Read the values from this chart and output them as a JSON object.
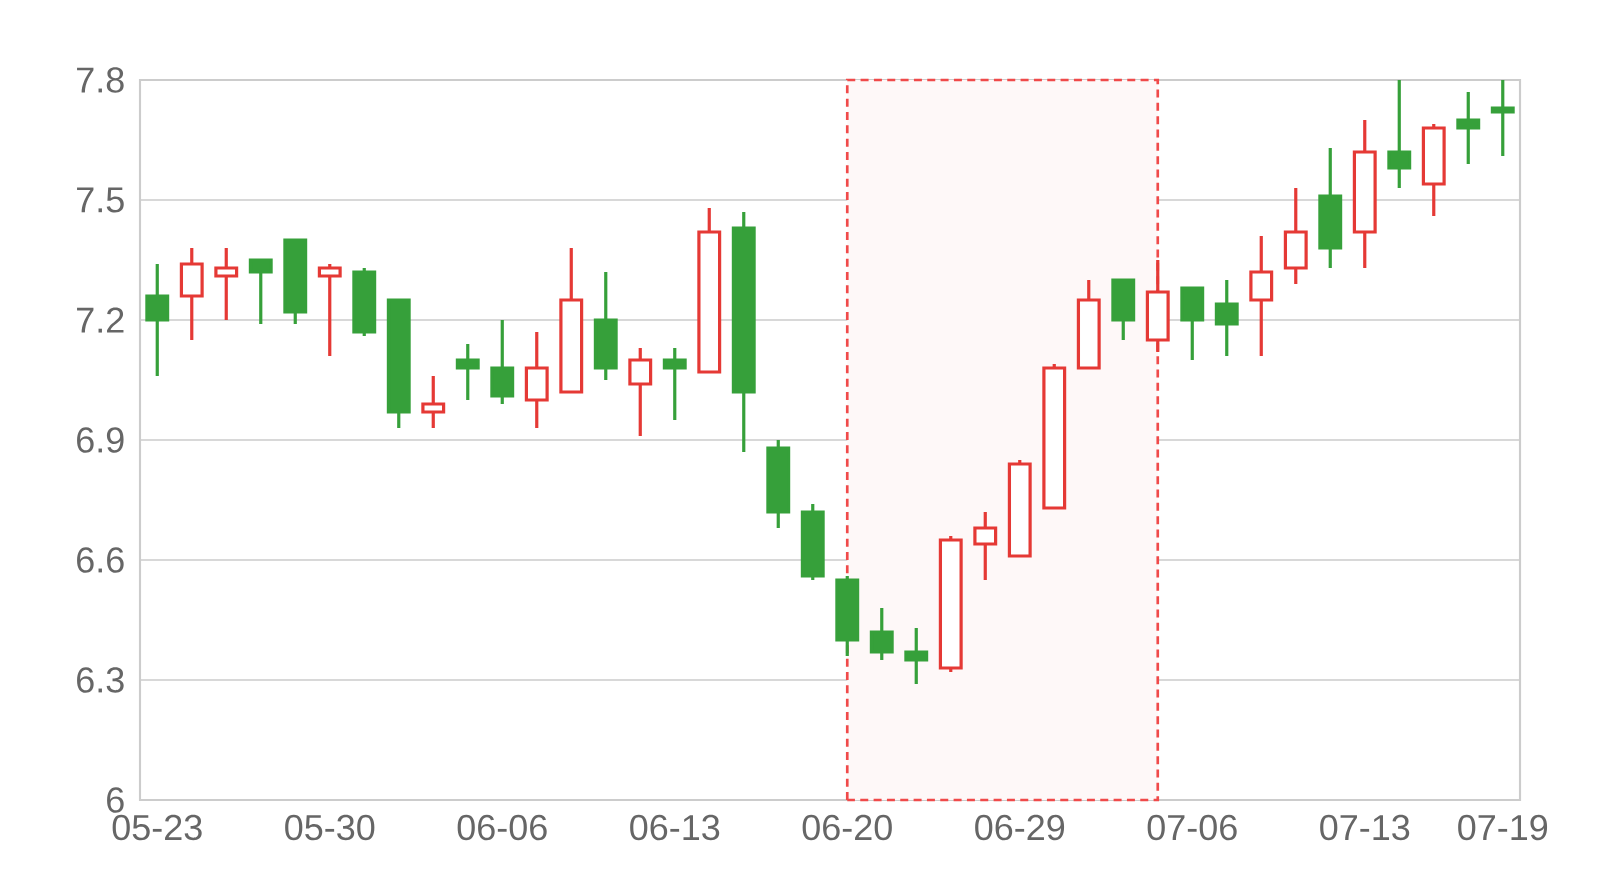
{
  "chart_data": {
    "type": "candlestick",
    "categories": [
      "05-23",
      null,
      null,
      null,
      null,
      "05-30",
      null,
      null,
      null,
      null,
      "06-06",
      null,
      null,
      null,
      null,
      "06-13",
      null,
      null,
      null,
      null,
      "06-20",
      null,
      null,
      null,
      null,
      "06-29",
      null,
      null,
      null,
      null,
      "07-06",
      null,
      null,
      null,
      null,
      "07-13",
      null,
      null,
      null,
      "07-19"
    ],
    "ohlc": [
      [
        7.26,
        7.34,
        7.06,
        7.2
      ],
      [
        7.26,
        7.38,
        7.15,
        7.34
      ],
      [
        7.31,
        7.38,
        7.2,
        7.33
      ],
      [
        7.35,
        7.35,
        7.19,
        7.32
      ],
      [
        7.4,
        7.4,
        7.19,
        7.22
      ],
      [
        7.31,
        7.34,
        7.11,
        7.33
      ],
      [
        7.32,
        7.33,
        7.16,
        7.17
      ],
      [
        7.25,
        7.25,
        6.93,
        6.97
      ],
      [
        6.97,
        7.06,
        6.93,
        6.99
      ],
      [
        7.1,
        7.14,
        7.0,
        7.08
      ],
      [
        7.08,
        7.2,
        6.99,
        7.01
      ],
      [
        7.0,
        7.17,
        6.93,
        7.08
      ],
      [
        7.02,
        7.38,
        7.02,
        7.25
      ],
      [
        7.2,
        7.32,
        7.05,
        7.08
      ],
      [
        7.04,
        7.13,
        6.91,
        7.1
      ],
      [
        7.1,
        7.13,
        6.95,
        7.08
      ],
      [
        7.07,
        7.48,
        7.07,
        7.42
      ],
      [
        7.43,
        7.47,
        6.87,
        7.02
      ],
      [
        6.88,
        6.9,
        6.68,
        6.72
      ],
      [
        6.72,
        6.74,
        6.55,
        6.56
      ],
      [
        6.55,
        6.56,
        6.36,
        6.4
      ],
      [
        6.42,
        6.48,
        6.35,
        6.37
      ],
      [
        6.37,
        6.43,
        6.29,
        6.35
      ],
      [
        6.33,
        6.66,
        6.32,
        6.65
      ],
      [
        6.64,
        6.72,
        6.55,
        6.68
      ],
      [
        6.61,
        6.85,
        6.61,
        6.84
      ],
      [
        6.73,
        7.09,
        6.73,
        7.08
      ],
      [
        7.08,
        7.3,
        7.08,
        7.25
      ],
      [
        7.3,
        7.3,
        7.15,
        7.2
      ],
      [
        7.15,
        7.35,
        7.12,
        7.27
      ],
      [
        7.28,
        7.28,
        7.1,
        7.2
      ],
      [
        7.24,
        7.3,
        7.11,
        7.19
      ],
      [
        7.25,
        7.41,
        7.11,
        7.32
      ],
      [
        7.33,
        7.53,
        7.29,
        7.42
      ],
      [
        7.51,
        7.63,
        7.33,
        7.38
      ],
      [
        7.42,
        7.7,
        7.33,
        7.62
      ],
      [
        7.62,
        7.8,
        7.53,
        7.58
      ],
      [
        7.54,
        7.69,
        7.46,
        7.68
      ],
      [
        7.7,
        7.77,
        7.59,
        7.68
      ],
      [
        7.73,
        7.8,
        7.61,
        7.72
      ]
    ],
    "colors": [
      "#36a03a",
      "#e53935",
      "#e53935",
      "#36a03a",
      "#36a03a",
      "#e53935",
      "#36a03a",
      "#36a03a",
      "#e53935",
      "#36a03a",
      "#36a03a",
      "#e53935",
      "#e53935",
      "#36a03a",
      "#e53935",
      "#36a03a",
      "#e53935",
      "#36a03a",
      "#36a03a",
      "#36a03a",
      "#36a03a",
      "#36a03a",
      "#36a03a",
      "#e53935",
      "#e53935",
      "#e53935",
      "#e53935",
      "#e53935",
      "#36a03a",
      "#e53935",
      "#36a03a",
      "#36a03a",
      "#e53935",
      "#e53935",
      "#36a03a",
      "#e53935",
      "#36a03a",
      "#e53935",
      "#36a03a",
      "#36a03a"
    ],
    "ylim": [
      6,
      7.8
    ],
    "yticks": [
      6,
      6.3,
      6.6,
      6.9,
      7.2,
      7.5,
      7.8
    ],
    "grid": "y"
  }
}
